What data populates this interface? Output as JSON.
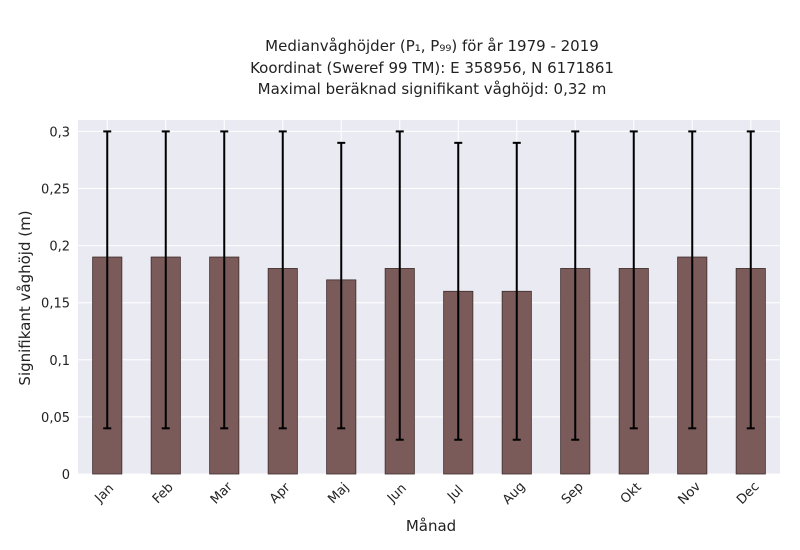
{
  "chart_data": {
    "type": "bar",
    "title_lines": [
      "Medianvåghöjder (P₁, P₉₉) för år 1979 - 2019",
      "Koordinat (Sweref 99 TM): E 358956, N 6171861",
      "Maximal beräknad signifikant våghöjd: 0,32 m"
    ],
    "xlabel": "Månad",
    "ylabel": "Signifikant våghöjd (m)",
    "categories": [
      "Jan",
      "Feb",
      "Mar",
      "Apr",
      "Maj",
      "Jun",
      "Jul",
      "Aug",
      "Sep",
      "Okt",
      "Nov",
      "Dec"
    ],
    "values": [
      0.19,
      0.19,
      0.19,
      0.18,
      0.17,
      0.18,
      0.16,
      0.16,
      0.18,
      0.18,
      0.19,
      0.18
    ],
    "error_low": [
      0.04,
      0.04,
      0.04,
      0.04,
      0.04,
      0.03,
      0.03,
      0.03,
      0.03,
      0.04,
      0.04,
      0.04
    ],
    "error_high": [
      0.3,
      0.3,
      0.3,
      0.3,
      0.29,
      0.3,
      0.29,
      0.29,
      0.3,
      0.3,
      0.3,
      0.3
    ],
    "ylim": [
      0,
      0.31
    ],
    "yticks": [
      0,
      0.05,
      0.1,
      0.15,
      0.2,
      0.25,
      0.3
    ],
    "ytick_labels": [
      "0",
      "0,05",
      "0,1",
      "0,15",
      "0,2",
      "0,25",
      "0,3"
    ],
    "grid": true,
    "colors": {
      "bar": "#7b5a5a",
      "bar_edge": "#3e2c2c",
      "error": "#000000",
      "plot_background": "#eaeaf2",
      "grid": "#ffffff"
    }
  }
}
